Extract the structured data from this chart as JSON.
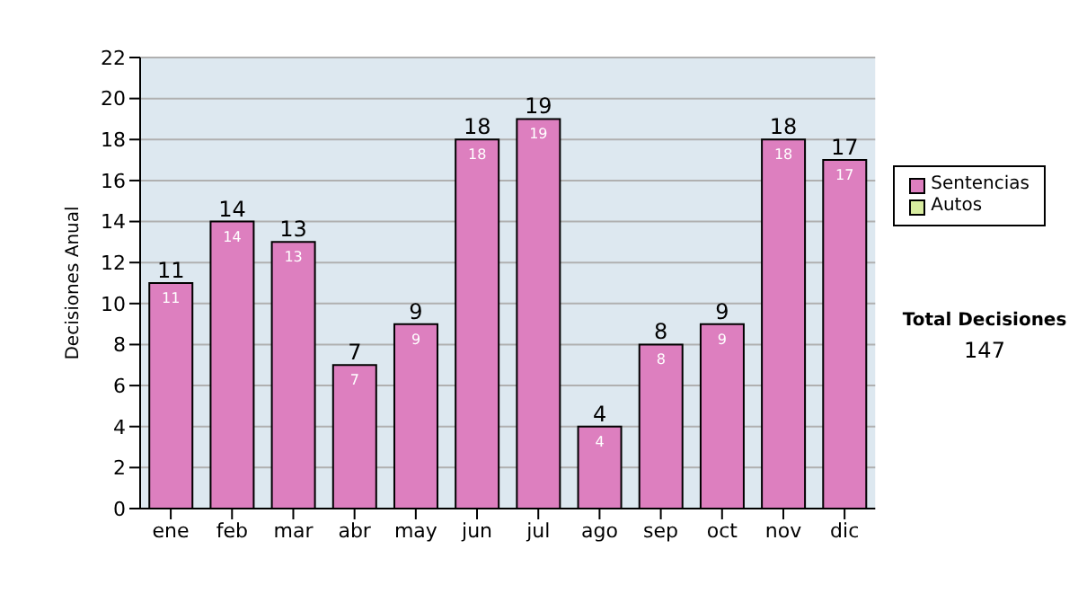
{
  "chart_data": {
    "type": "bar",
    "ylabel": "Decisiones Anual",
    "categories": [
      "ene",
      "feb",
      "mar",
      "abr",
      "may",
      "jun",
      "jul",
      "ago",
      "sep",
      "oct",
      "nov",
      "dic"
    ],
    "series": [
      {
        "name": "Sentencias",
        "color": "#dd7fbf",
        "values": [
          11,
          14,
          13,
          7,
          9,
          18,
          19,
          4,
          8,
          9,
          18,
          17
        ],
        "value_labels": [
          "11",
          "14",
          "13",
          "7",
          "9",
          "18",
          "19",
          "4",
          "8",
          "9",
          "18",
          "17"
        ]
      },
      {
        "name": "Autos",
        "color": "#d8eca0",
        "values": [
          0,
          0,
          0,
          0,
          0,
          0,
          0,
          0,
          0,
          0,
          0,
          0
        ]
      }
    ],
    "stacked": true,
    "totals": [
      "11",
      "14",
      "13",
      "7",
      "9",
      "18",
      "19",
      "4",
      "8",
      "9",
      "18",
      "17"
    ],
    "ylim": [
      0,
      22
    ],
    "yticks": [
      0,
      2,
      4,
      6,
      8,
      10,
      12,
      14,
      16,
      18,
      20,
      22
    ],
    "grid": "y",
    "legend": "right",
    "annotations": [
      "Total Decisiones",
      "147"
    ]
  }
}
